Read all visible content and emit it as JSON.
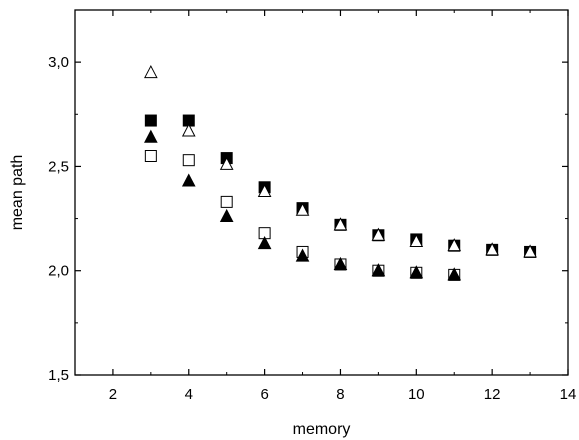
{
  "chart_data": {
    "type": "scatter",
    "xlabel": "memory",
    "ylabel": "mean path",
    "xlim": [
      1,
      14
    ],
    "ylim": [
      1.5,
      3.25
    ],
    "x_ticks": [
      2,
      4,
      6,
      8,
      10,
      12,
      14
    ],
    "x_tick_labels": [
      "2",
      "4",
      "6",
      "8",
      "10",
      "12",
      "14"
    ],
    "y_ticks": [
      1.5,
      2.0,
      2.5,
      3.0
    ],
    "y_tick_labels": [
      "1,5",
      "2,0",
      "2,5",
      "3,0"
    ],
    "grid": false,
    "legend": "none",
    "series": [
      {
        "marker": "filled-square",
        "color": "#000000",
        "x": [
          3,
          4,
          5,
          6,
          7,
          8,
          9,
          10,
          11,
          12,
          13
        ],
        "y": [
          2.72,
          2.72,
          2.54,
          2.4,
          2.3,
          2.22,
          2.17,
          2.15,
          2.12,
          2.1,
          2.09
        ]
      },
      {
        "marker": "open-triangle",
        "color": "#000000",
        "x": [
          3,
          4,
          5,
          6,
          7,
          8,
          9,
          10,
          11,
          12,
          13
        ],
        "y": [
          2.95,
          2.67,
          2.51,
          2.38,
          2.29,
          2.22,
          2.17,
          2.14,
          2.12,
          2.1,
          2.09
        ]
      },
      {
        "marker": "open-square",
        "color": "#000000",
        "x": [
          3,
          4,
          5,
          6,
          7,
          8,
          9,
          10,
          11
        ],
        "y": [
          2.55,
          2.53,
          2.33,
          2.18,
          2.09,
          2.03,
          2.0,
          1.99,
          1.98
        ]
      },
      {
        "marker": "filled-triangle",
        "color": "#000000",
        "x": [
          3,
          4,
          5,
          6,
          7,
          8,
          9,
          10,
          11
        ],
        "y": [
          2.64,
          2.43,
          2.26,
          2.13,
          2.07,
          2.03,
          2.0,
          1.99,
          1.98
        ]
      }
    ]
  }
}
